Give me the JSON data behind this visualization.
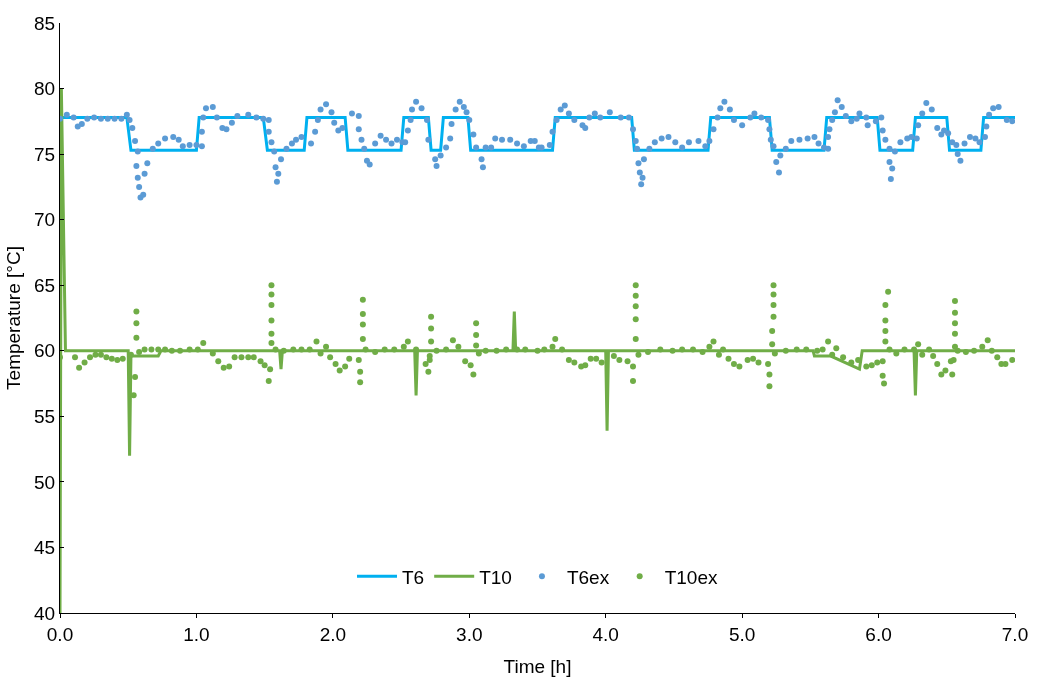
{
  "chart_data": {
    "type": "line",
    "xlabel": "Time [h]",
    "ylabel": "Temperature [°C]",
    "xlim": [
      0,
      7
    ],
    "xticks": [
      {
        "value": 0,
        "label": "0.0"
      },
      {
        "value": 1,
        "label": "1.0"
      },
      {
        "value": 2,
        "label": "2.0"
      },
      {
        "value": 3,
        "label": "3.0"
      },
      {
        "value": 4,
        "label": "4.0"
      },
      {
        "value": 5,
        "label": "5.0"
      },
      {
        "value": 6,
        "label": "6.0"
      },
      {
        "value": 7,
        "label": "7.0"
      }
    ],
    "ylim": [
      40,
      85
    ],
    "yticks": [
      40,
      45,
      50,
      55,
      60,
      65,
      70,
      75,
      80,
      85
    ],
    "grid": false,
    "legend": "bottom",
    "series": [
      {
        "name": "T6",
        "color": "#00b0f0",
        "line_style": "solid",
        "x": [
          0,
          0.49,
          0.52,
          1.0,
          1.02,
          1.49,
          1.52,
          1.79,
          1.81,
          2.09,
          2.11,
          2.5,
          2.52,
          2.7,
          2.72,
          2.79,
          2.81,
          2.99,
          3.01,
          3.61,
          3.63,
          4.19,
          4.21,
          4.75,
          4.77,
          5.2,
          5.22,
          5.6,
          5.62,
          5.99,
          6.01,
          6.25,
          6.27,
          6.5,
          6.52,
          6.75,
          6.77,
          7.0
        ],
        "values": [
          77.8,
          77.8,
          75.3,
          75.3,
          77.8,
          77.8,
          75.3,
          75.3,
          77.8,
          77.8,
          75.3,
          75.3,
          77.8,
          77.8,
          75.3,
          75.3,
          77.8,
          77.8,
          75.3,
          75.3,
          77.8,
          77.8,
          75.3,
          75.3,
          77.8,
          77.8,
          75.3,
          75.3,
          77.8,
          77.8,
          75.3,
          75.3,
          77.8,
          77.8,
          75.3,
          75.3,
          77.8,
          77.8
        ]
      },
      {
        "name": "T10",
        "color": "#70ad47",
        "line_style": "solid",
        "x": [
          0,
          0.01,
          0.04,
          0.5,
          0.51,
          0.52,
          0.72,
          0.74,
          1.61,
          1.62,
          1.63,
          2.6,
          2.61,
          2.62,
          3.32,
          3.33,
          3.34,
          4.0,
          4.01,
          4.02,
          5.52,
          5.53,
          5.65,
          5.86,
          5.88,
          6.26,
          6.27,
          6.28,
          7.0
        ],
        "values": [
          40,
          80,
          60,
          60,
          52,
          59.6,
          59.6,
          60,
          60,
          58.6,
          60,
          60,
          56.6,
          60,
          60,
          63,
          60,
          60,
          53.9,
          60,
          60,
          59.6,
          59.6,
          58.6,
          60,
          60,
          56.6,
          60,
          60
        ]
      },
      {
        "name": "T6ex",
        "type": "scatter",
        "marker": "circle",
        "color": "#5b9bd5",
        "x": [
          0,
          0.05,
          0.1,
          0.13,
          0.16,
          0.2,
          0.25,
          0.3,
          0.35,
          0.4,
          0.45,
          0.49,
          0.51,
          0.53,
          0.55,
          0.57,
          0.56,
          0.57,
          0.62,
          0.64,
          0.58,
          0.59,
          0.61,
          0.68,
          0.72,
          0.77,
          0.83,
          0.87,
          0.9,
          0.95,
          1.0,
          1.04,
          1.04,
          1.05,
          1.07,
          1.12,
          1.15,
          1.19,
          1.22,
          1.26,
          1.3,
          1.38,
          1.44,
          1.49,
          1.53,
          1.53,
          1.55,
          1.57,
          1.58,
          1.6,
          1.59,
          1.62,
          1.66,
          1.7,
          1.73,
          1.77,
          1.84,
          1.87,
          1.89,
          1.91,
          1.95,
          1.99,
          2.01,
          2.04,
          2.07,
          2.14,
          2.19,
          2.19,
          2.21,
          2.23,
          2.25,
          2.27,
          2.31,
          2.35,
          2.39,
          2.43,
          2.47,
          2.51,
          2.53,
          2.55,
          2.57,
          2.58,
          2.61,
          2.65,
          2.69,
          2.7,
          2.75,
          2.76,
          2.79,
          2.83,
          2.86,
          2.87,
          2.9,
          2.93,
          2.96,
          2.98,
          3.0,
          3.03,
          3.05,
          3.09,
          3.1,
          3.12,
          3.16,
          3.19,
          3.24,
          3.3,
          3.35,
          3.4,
          3.45,
          3.48,
          3.51,
          3.53,
          3.59,
          3.61,
          3.64,
          3.67,
          3.7,
          3.73,
          3.77,
          3.83,
          3.85,
          3.88,
          3.92,
          3.96,
          4.03,
          4.11,
          4.17,
          4.2,
          4.22,
          4.23,
          4.28,
          4.24,
          4.25,
          4.27,
          4.26,
          4.32,
          4.36,
          4.41,
          4.46,
          4.51,
          4.56,
          4.61,
          4.68,
          4.73,
          4.76,
          4.79,
          4.82,
          4.84,
          4.87,
          4.91,
          4.94,
          5.0,
          5.06,
          5.09,
          5.14,
          5.19,
          5.2,
          5.21,
          5.23,
          5.28,
          5.25,
          5.27,
          5.32,
          5.36,
          5.42,
          5.48,
          5.53,
          5.56,
          5.6,
          5.63,
          5.63,
          5.64,
          5.66,
          5.68,
          5.7,
          5.73,
          5.76,
          5.8,
          5.84,
          5.86,
          5.91,
          5.92,
          5.98,
          6.02,
          6.03,
          6.05,
          6.08,
          6.08,
          6.1,
          6.09,
          6.12,
          6.16,
          6.21,
          6.24,
          6.28,
          6.29,
          6.32,
          6.35,
          6.39,
          6.43,
          6.46,
          6.48,
          6.51,
          6.54,
          6.57,
          6.58,
          6.6,
          6.63,
          6.67,
          6.71,
          6.74,
          6.78,
          6.79,
          6.81,
          6.84,
          6.88,
          6.94,
          6.98
        ],
        "values": [
          77.7,
          78.0,
          77.8,
          77.1,
          77.3,
          77.7,
          77.8,
          77.7,
          77.7,
          77.7,
          77.7,
          78.0,
          77.6,
          77.0,
          76.0,
          75.2,
          74.1,
          73.2,
          73.5,
          74.3,
          72.5,
          71.7,
          71.9,
          75.4,
          75.8,
          76.2,
          76.3,
          76.1,
          75.6,
          75.7,
          75.7,
          75.6,
          76.7,
          77.8,
          78.5,
          78.6,
          77.8,
          77.0,
          76.9,
          77.4,
          77.9,
          78.0,
          77.8,
          77.7,
          77.6,
          76.7,
          75.9,
          75.2,
          74.0,
          73.5,
          72.9,
          74.6,
          75.4,
          75.8,
          76.1,
          76.3,
          75.8,
          76.7,
          77.6,
          78.4,
          78.8,
          78.2,
          77.4,
          76.8,
          77.0,
          78.1,
          77.9,
          76.9,
          76.1,
          75.4,
          74.5,
          74.2,
          75.8,
          76.4,
          76.1,
          75.8,
          76.1,
          75.9,
          75.9,
          76.8,
          77.6,
          78.4,
          79.0,
          78.5,
          77.6,
          76.1,
          74.6,
          74.1,
          74.9,
          75.5,
          76.2,
          77.3,
          78.4,
          79.0,
          78.6,
          78.2,
          77.6,
          76.5,
          75.5,
          74.6,
          74.0,
          75.5,
          75.5,
          76.2,
          76.1,
          76.1,
          75.8,
          75.6,
          76.0,
          76.0,
          75.5,
          75.5,
          75.7,
          76.7,
          77.6,
          78.4,
          78.7,
          78.1,
          77.6,
          77.2,
          77.0,
          77.8,
          78.1,
          77.8,
          78.2,
          77.8,
          77.8,
          76.9,
          76.0,
          75.4,
          74.6,
          74.3,
          73.6,
          73.2,
          72.7,
          75.4,
          75.9,
          76.2,
          76.3,
          75.9,
          75.5,
          75.9,
          76.0,
          75.6,
          76.0,
          76.9,
          77.8,
          78.5,
          79.0,
          78.4,
          77.6,
          77.2,
          77.8,
          78.1,
          77.8,
          77.6,
          76.9,
          76.1,
          75.6,
          74.9,
          74.4,
          73.6,
          75.4,
          76.0,
          76.1,
          76.2,
          76.3,
          75.8,
          75.5,
          75.4,
          76.3,
          76.9,
          77.6,
          78.2,
          79.1,
          78.6,
          77.9,
          77.5,
          77.7,
          78.1,
          77.8,
          77.2,
          77.5,
          77.8,
          76.8,
          76.1,
          75.4,
          74.4,
          73.9,
          73.1,
          75.2,
          75.9,
          76.2,
          76.3,
          76.2,
          77.2,
          78.1,
          78.9,
          78.4,
          77.0,
          76.5,
          76.8,
          76.6,
          75.9,
          75.7,
          75.0,
          74.5,
          75.8,
          76.3,
          76.2,
          75.9,
          76.3,
          77.1,
          78.0,
          78.5,
          78.6,
          77.6,
          77.5
        ]
      },
      {
        "name": "T10ex",
        "type": "scatter",
        "marker": "circle",
        "color": "#70ad47",
        "x": [
          0.0,
          0.11,
          0.14,
          0.18,
          0.22,
          0.26,
          0.3,
          0.34,
          0.38,
          0.42,
          0.46,
          0.52,
          0.54,
          0.55,
          0.56,
          0.56,
          0.56,
          0.58,
          0.62,
          0.67,
          0.72,
          0.77,
          0.82,
          0.88,
          0.95,
          1.01,
          1.05,
          1.12,
          1.16,
          1.2,
          1.24,
          1.28,
          1.33,
          1.38,
          1.42,
          1.47,
          1.5,
          1.54,
          1.53,
          1.55,
          1.55,
          1.55,
          1.55,
          1.55,
          1.55,
          1.58,
          1.64,
          1.71,
          1.77,
          1.83,
          1.88,
          1.91,
          1.95,
          1.98,
          2.02,
          2.05,
          2.09,
          2.12,
          2.19,
          2.2,
          2.2,
          2.22,
          2.22,
          2.22,
          2.22,
          2.24,
          2.31,
          2.38,
          2.45,
          2.52,
          2.55,
          2.61,
          2.68,
          2.7,
          2.71,
          2.71,
          2.72,
          2.72,
          2.72,
          2.76,
          2.83,
          2.88,
          2.92,
          2.97,
          3.01,
          3.03,
          3.05,
          3.05,
          3.05,
          3.07,
          3.12,
          3.2,
          3.27,
          3.35,
          3.41,
          3.5,
          3.55,
          3.61,
          3.63,
          3.68,
          3.73,
          3.77,
          3.82,
          3.85,
          3.89,
          3.93,
          3.97,
          4.06,
          4.1,
          4.16,
          4.2,
          4.2,
          4.22,
          4.22,
          4.22,
          4.22,
          4.22,
          4.24,
          4.31,
          4.4,
          4.49,
          4.56,
          4.64,
          4.71,
          4.76,
          4.79,
          4.83,
          4.86,
          4.9,
          4.94,
          4.98,
          5.04,
          5.08,
          5.12,
          5.19,
          5.2,
          5.2,
          5.22,
          5.22,
          5.23,
          5.23,
          5.23,
          5.23,
          5.24,
          5.32,
          5.4,
          5.47,
          5.55,
          5.59,
          5.63,
          5.66,
          5.69,
          5.74,
          5.8,
          5.85,
          5.91,
          5.95,
          5.99,
          6.03,
          6.04,
          6.03,
          6.05,
          6.05,
          6.05,
          6.05,
          6.07,
          6.08,
          6.13,
          6.19,
          6.26,
          6.29,
          6.32,
          6.37,
          6.4,
          6.43,
          6.46,
          6.49,
          6.53,
          6.54,
          6.55,
          6.56,
          6.56,
          6.56,
          6.56,
          6.56,
          6.58,
          6.64,
          6.7,
          6.76,
          6.8,
          6.83,
          6.87,
          6.9,
          6.93,
          6.98
        ],
        "values": [
          59.5,
          59.5,
          58.7,
          59.1,
          59.5,
          59.7,
          59.7,
          59.5,
          59.4,
          59.3,
          59.4,
          59.7,
          56.6,
          58.0,
          61.0,
          62.1,
          63.0,
          59.9,
          60.1,
          60.1,
          60.1,
          60.1,
          60.0,
          60.0,
          60.1,
          60.1,
          60.6,
          59.8,
          59.2,
          58.7,
          58.8,
          59.5,
          59.5,
          59.5,
          59.5,
          59.2,
          58.9,
          58.6,
          57.7,
          60.6,
          61.3,
          62.3,
          63.5,
          64.3,
          65.0,
          60.1,
          60.0,
          60.1,
          60.1,
          60.1,
          60.7,
          59.8,
          60.3,
          59.5,
          59.0,
          58.5,
          58.8,
          59.4,
          59.3,
          58.4,
          57.6,
          60.9,
          62.0,
          62.8,
          63.9,
          60.1,
          59.9,
          60.1,
          60.1,
          60.3,
          60.7,
          60.1,
          59.0,
          58.4,
          59.3,
          59.6,
          60.7,
          61.7,
          62.6,
          60.0,
          60.1,
          60.8,
          60.3,
          59.2,
          58.9,
          58.2,
          60.4,
          61.2,
          62.1,
          59.8,
          60.0,
          60.0,
          60.1,
          60.1,
          60.1,
          60.0,
          60.1,
          60.3,
          60.9,
          60.1,
          59.3,
          59.1,
          58.8,
          58.9,
          59.4,
          59.4,
          59.1,
          59.6,
          59.3,
          59.2,
          58.8,
          57.7,
          60.9,
          62.4,
          63.4,
          64.2,
          65.0,
          59.7,
          59.9,
          60.1,
          60.0,
          60.1,
          60.1,
          59.9,
          60.3,
          60.7,
          59.7,
          60.1,
          59.4,
          59.0,
          58.8,
          59.3,
          59.4,
          59.1,
          59.0,
          57.3,
          58.2,
          60.5,
          61.5,
          62.6,
          63.5,
          64.3,
          65.0,
          59.8,
          60.0,
          60.1,
          60.1,
          60.0,
          60.1,
          60.7,
          59.7,
          60.2,
          59.5,
          59.1,
          59.3,
          58.8,
          58.9,
          59.1,
          58.1,
          57.5,
          59.2,
          60.7,
          61.5,
          62.3,
          63.5,
          64.5,
          60.1,
          59.8,
          60.1,
          60.1,
          60.5,
          59.7,
          60.1,
          59.6,
          59.0,
          58.2,
          58.5,
          59.2,
          58.2,
          59.3,
          60.3,
          61.3,
          62.1,
          62.9,
          63.8,
          60.0,
          59.9,
          60.0,
          60.3,
          60.8,
          60.0,
          59.5,
          59.0,
          59.0,
          59.3
        ]
      }
    ]
  }
}
